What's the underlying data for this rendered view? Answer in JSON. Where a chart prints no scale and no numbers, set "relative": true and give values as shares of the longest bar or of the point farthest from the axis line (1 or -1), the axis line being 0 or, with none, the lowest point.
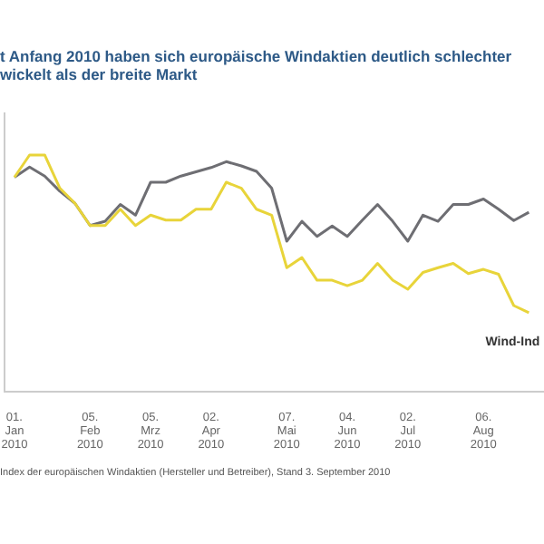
{
  "chart_data": {
    "type": "line",
    "title": "t Anfang 2010 haben sich europäische Windaktien deutlich schlechter\nwickelt als der breite Markt",
    "relative": true,
    "marker": "none",
    "x": [
      "2010-01-01",
      "2010-01-08",
      "2010-01-15",
      "2010-01-22",
      "2010-01-29",
      "2010-02-05",
      "2010-02-12",
      "2010-02-19",
      "2010-02-26",
      "2010-03-05",
      "2010-03-12",
      "2010-03-19",
      "2010-03-26",
      "2010-04-02",
      "2010-04-09",
      "2010-04-16",
      "2010-04-23",
      "2010-04-30",
      "2010-05-07",
      "2010-05-14",
      "2010-05-21",
      "2010-05-28",
      "2010-06-04",
      "2010-06-11",
      "2010-06-18",
      "2010-06-25",
      "2010-07-02",
      "2010-07-09",
      "2010-07-16",
      "2010-07-23",
      "2010-07-30",
      "2010-08-06",
      "2010-08-13",
      "2010-08-20",
      "2010-08-27"
    ],
    "xlim": [
      "2009-12-27",
      "2010-09-03"
    ],
    "xticks": [
      {
        "value": "2010-01-01",
        "label": "01.\nJan\n2010"
      },
      {
        "value": "2010-02-05",
        "label": "05.\nFeb\n2010"
      },
      {
        "value": "2010-03-05",
        "label": "05.\nMrz\n2010"
      },
      {
        "value": "2010-04-02",
        "label": "02.\nApr\n2010"
      },
      {
        "value": "2010-05-07",
        "label": "07.\nMai\n2010"
      },
      {
        "value": "2010-06-04",
        "label": "04.\nJun\n2010"
      },
      {
        "value": "2010-07-02",
        "label": "02.\nJul\n2010"
      },
      {
        "value": "2010-08-06",
        "label": "06.\nAug\n2010"
      }
    ],
    "series": [
      {
        "color": "#6e6e73",
        "values": [
          0.906,
          0.949,
          0.911,
          0.847,
          0.796,
          0.702,
          0.72,
          0.791,
          0.746,
          0.885,
          0.885,
          0.911,
          0.929,
          0.947,
          0.972,
          0.954,
          0.931,
          0.86,
          0.636,
          0.72,
          0.656,
          0.7,
          0.656,
          0.725,
          0.791,
          0.72,
          0.636,
          0.746,
          0.72,
          0.791,
          0.791,
          0.814,
          0.771,
          0.723,
          0.758
        ]
      },
      {
        "name": "Wind-Ind",
        "color": "#e8d43a",
        "values": [
          0.906,
          1,
          1,
          0.86,
          0.796,
          0.702,
          0.702,
          0.771,
          0.702,
          0.746,
          0.725,
          0.725,
          0.771,
          0.771,
          0.885,
          0.86,
          0.771,
          0.746,
          0.524,
          0.567,
          0.471,
          0.471,
          0.448,
          0.471,
          0.542,
          0.471,
          0.433,
          0.504,
          0.524,
          0.542,
          0.499,
          0.517,
          0.496,
          0.364,
          0.334
        ]
      }
    ],
    "annotations": [
      "Index der europäischen Windaktien (Hersteller und Betreiber), Stand 3. September 2010"
    ]
  }
}
